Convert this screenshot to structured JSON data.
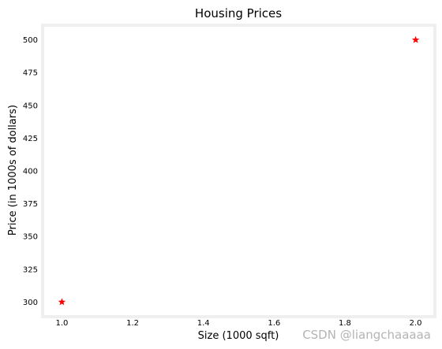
{
  "chart_data": {
    "type": "scatter",
    "title": "Housing Prices",
    "xlabel": "Size (1000 sqft)",
    "ylabel": "Price (in 1000s of dollars)",
    "xlim": [
      0.95,
      2.05
    ],
    "ylim": [
      290,
      510
    ],
    "xticks": [
      1.0,
      1.2,
      1.4,
      1.6,
      1.8,
      2.0
    ],
    "xtick_labels": [
      "1.0",
      "1.2",
      "1.4",
      "1.6",
      "1.8",
      "2.0"
    ],
    "yticks": [
      300,
      325,
      350,
      375,
      400,
      425,
      450,
      475,
      500
    ],
    "ytick_labels": [
      "300",
      "325",
      "350",
      "375",
      "400",
      "425",
      "450",
      "475",
      "500"
    ],
    "grid": false,
    "marker": "star",
    "color": "#ff0000",
    "x": [
      1.0,
      2.0
    ],
    "y": [
      300,
      500
    ]
  },
  "watermark": "CSDN @liangchaaaaa",
  "colors": {
    "frame": "#efefef",
    "marker": "#ff0000",
    "watermark": "#b4b4b4"
  }
}
